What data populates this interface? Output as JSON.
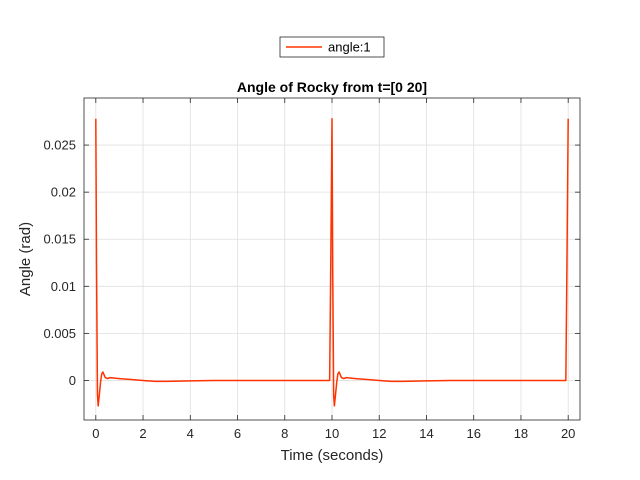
{
  "chart_data": {
    "type": "line",
    "title": "Angle of Rocky from t=[0 20]",
    "xlabel": "Time (seconds)",
    "ylabel": "Angle (rad)",
    "xlim": [
      -0.5,
      20.5
    ],
    "ylim": [
      -0.0042,
      0.03
    ],
    "xticks": [
      0,
      2,
      4,
      6,
      8,
      10,
      12,
      14,
      16,
      18,
      20
    ],
    "yticks": [
      0,
      0.005,
      0.01,
      0.015,
      0.02,
      0.025
    ],
    "ytick_labels": [
      "0",
      "0.005",
      "0.01",
      "0.015",
      "0.02",
      "0.025"
    ],
    "grid": true,
    "legend_position": "top-center",
    "series": [
      {
        "name": "angle:1",
        "color": "#ff3300",
        "x": [
          0,
          0.03,
          0.07,
          0.1,
          0.15,
          0.2,
          0.25,
          0.3,
          0.35,
          0.4,
          0.5,
          0.6,
          0.8,
          1.0,
          1.5,
          2.0,
          2.5,
          3.0,
          4.0,
          5.0,
          6.0,
          7.0,
          8.0,
          9.0,
          9.9,
          9.95,
          10.0,
          10.03,
          10.07,
          10.1,
          10.15,
          10.2,
          10.25,
          10.3,
          10.35,
          10.4,
          10.5,
          10.6,
          10.8,
          11.0,
          11.5,
          12.0,
          12.5,
          13.0,
          14.0,
          15.0,
          16.0,
          17.0,
          18.0,
          19.0,
          19.9,
          19.95,
          20.0
        ],
        "y": [
          0.0278,
          0.012,
          -0.0015,
          -0.0027,
          -0.0015,
          -0.0002,
          0.0007,
          0.0009,
          0.0006,
          0.0003,
          0.0002,
          0.0003,
          0.00025,
          0.0002,
          0.0001,
          0.0,
          -0.0001,
          -0.0001,
          -5e-05,
          0.0,
          0.0,
          0.0,
          0.0,
          0.0,
          0.0,
          0.013,
          0.0278,
          0.012,
          -0.0015,
          -0.0027,
          -0.0015,
          -0.0002,
          0.0007,
          0.0009,
          0.0006,
          0.0003,
          0.0002,
          0.0003,
          0.00025,
          0.0002,
          0.0001,
          0.0,
          -0.0001,
          -0.0001,
          -5e-05,
          0.0,
          0.0,
          0.0,
          0.0,
          0.0,
          0.0,
          0.013,
          0.0278
        ]
      }
    ]
  }
}
